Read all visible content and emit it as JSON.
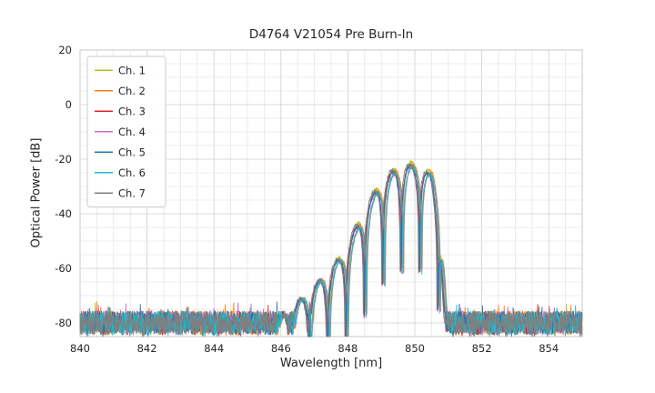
{
  "chart_data": {
    "type": "line",
    "title": "D4764 V21054 Pre Burn-In",
    "xlabel": "Wavelength [nm]",
    "ylabel": "Optical Power [dB]",
    "xlim": [
      840,
      855
    ],
    "ylim": [
      -85,
      20
    ],
    "xticks": [
      840,
      842,
      844,
      846,
      848,
      850,
      852,
      854
    ],
    "yticks": [
      20,
      0,
      -20,
      -40,
      -60,
      -80
    ],
    "grid": true,
    "grid_minor_step_x": 0.5,
    "grid_minor_step_y": 5,
    "legend_position": "upper left",
    "colors": {
      "grid_major": "#cfcfcf",
      "grid_minor": "#e7e7e7",
      "spine": "#c9c9c9",
      "text": "#262626",
      "legend_border": "#cccccc",
      "background": "#ffffff"
    },
    "noise_floor_db": -80,
    "noise_halfwidth_db": 4.5,
    "fringe_period_nm": 0.55,
    "fringe_center_nm": 849.62,
    "fringe_min_amplitude": 0.012,
    "sample_step_nm": 0.01,
    "envelope_points": [
      [
        840,
        -83
      ],
      [
        845.6,
        -83
      ],
      [
        846.2,
        -76
      ],
      [
        846.8,
        -69
      ],
      [
        847.3,
        -63
      ],
      [
        847.8,
        -56
      ],
      [
        848.2,
        -47
      ],
      [
        848.6,
        -37
      ],
      [
        849.0,
        -29
      ],
      [
        849.4,
        -24.5
      ],
      [
        849.8,
        -22.5
      ],
      [
        850.2,
        -23
      ],
      [
        850.5,
        -26
      ],
      [
        850.7,
        -34
      ],
      [
        850.85,
        -60
      ],
      [
        850.95,
        -83
      ],
      [
        855,
        -83
      ]
    ],
    "peak_power_db": -22.5,
    "peak_wavelength_nm": 849.8,
    "series": [
      {
        "name": "Ch. 1",
        "color": "#bcbd22",
        "dx": 0.0,
        "amp": 1.5,
        "seed": 101
      },
      {
        "name": "Ch. 2",
        "color": "#ff7f0e",
        "dx": 0.05,
        "amp": 0.5,
        "seed": 202
      },
      {
        "name": "Ch. 3",
        "color": "#d62728",
        "dx": -0.04,
        "amp": 0.0,
        "seed": 303
      },
      {
        "name": "Ch. 4",
        "color": "#c271c2",
        "dx": 0.02,
        "amp": -0.5,
        "seed": 404
      },
      {
        "name": "Ch. 5",
        "color": "#1f77b4",
        "dx": -0.02,
        "amp": 0.3,
        "seed": 505
      },
      {
        "name": "Ch. 6",
        "color": "#17becf",
        "dx": 0.04,
        "amp": -0.3,
        "seed": 606
      },
      {
        "name": "Ch. 7",
        "color": "#7f7f7f",
        "dx": -0.06,
        "amp": 0.8,
        "seed": 707
      }
    ]
  }
}
